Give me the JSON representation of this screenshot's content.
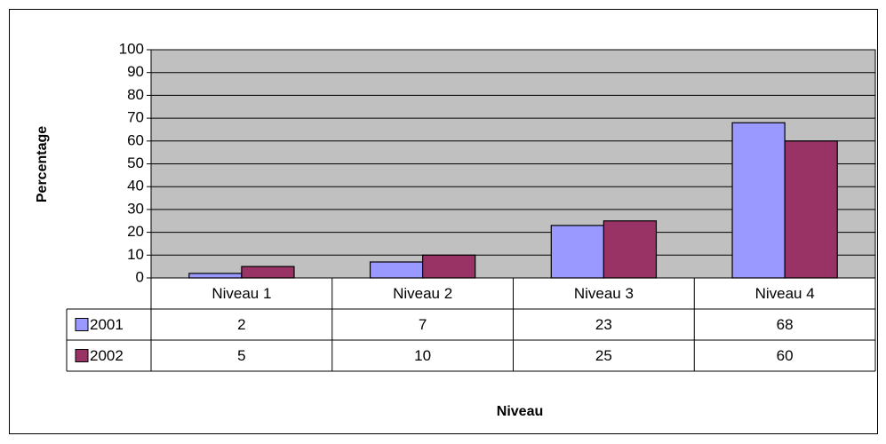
{
  "chart_data": {
    "type": "bar",
    "y_label": "Percentage",
    "x_label": "Niveau",
    "categories": [
      "Niveau 1",
      "Niveau 2",
      "Niveau 3",
      "Niveau 4"
    ],
    "series": [
      {
        "name": "2001",
        "color": "#9999ff",
        "values": [
          2,
          7,
          23,
          68
        ]
      },
      {
        "name": "2002",
        "color": "#993366",
        "values": [
          5,
          10,
          25,
          60
        ]
      }
    ],
    "ylim": [
      0,
      100
    ],
    "yticks": [
      0,
      10,
      20,
      30,
      40,
      50,
      60,
      70,
      80,
      90,
      100
    ],
    "grid": true,
    "data_table": true
  }
}
